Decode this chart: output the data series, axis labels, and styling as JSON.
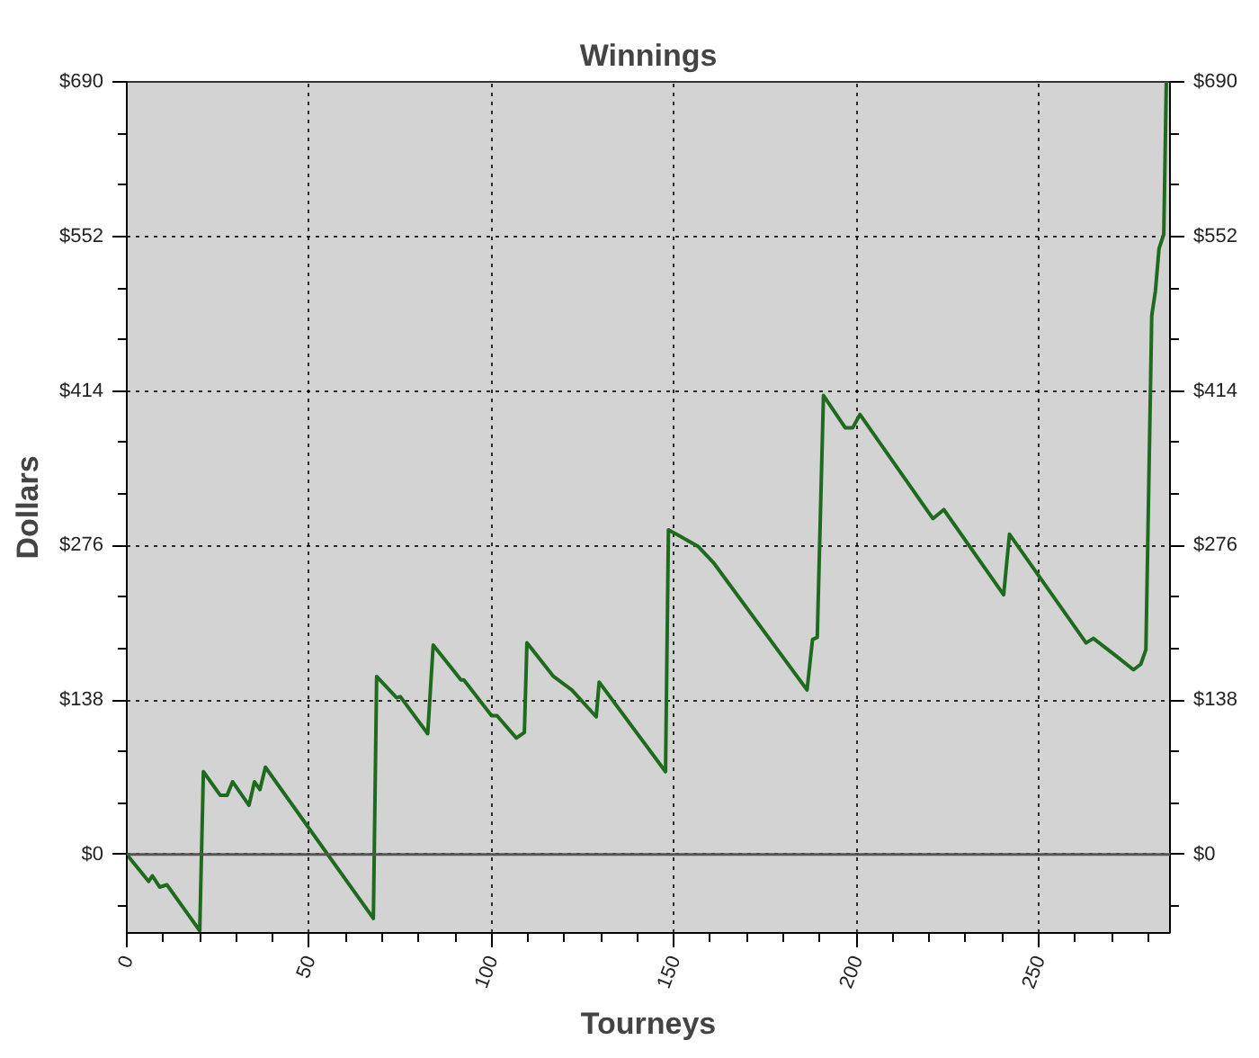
{
  "chart_data": {
    "type": "line",
    "title": "Winnings",
    "xlabel": "Tourneys",
    "ylabel": "Dollars",
    "x": [
      0,
      6,
      7,
      9,
      11,
      20,
      21,
      25.6,
      27.5,
      29,
      33.5,
      35,
      36.5,
      38,
      67.6,
      68.5,
      74,
      75,
      82.5,
      84,
      91.6,
      92.4,
      100,
      101.5,
      106.8,
      109,
      109.7,
      117,
      122,
      128.7,
      129.5,
      147.7,
      148.5,
      151.8,
      156.7,
      161,
      186.5,
      188,
      189.3,
      191,
      197,
      199,
      201,
      221,
      224,
      240.4,
      242,
      263,
      265,
      271,
      276,
      278,
      279.4,
      281,
      282,
      283,
      284.3,
      285
    ],
    "series": [
      {
        "color": "#1e6b1e",
        "values": [
          0,
          -24,
          -19,
          -29,
          -27,
          -68,
          74,
          53,
          53,
          65,
          44,
          65,
          58,
          78,
          -57,
          159,
          140,
          141,
          108,
          187,
          156,
          156,
          124,
          124,
          104,
          109,
          189,
          159,
          147,
          123,
          154,
          74,
          290,
          284,
          275,
          260,
          147,
          192,
          194,
          410,
          381,
          381,
          393,
          300,
          308,
          232,
          286,
          189,
          193,
          178,
          165,
          170,
          183,
          481,
          503,
          541,
          554,
          690
        ]
      }
    ],
    "xlim": [
      0,
      286
    ],
    "xticks": [
      0,
      50,
      100,
      150,
      200,
      250
    ],
    "ylim": [
      -70,
      690
    ],
    "yticks": [
      {
        "value": 0,
        "label": "$0"
      },
      {
        "value": 138,
        "label": "$138"
      },
      {
        "value": 276,
        "label": "$276"
      },
      {
        "value": 414,
        "label": "$414"
      },
      {
        "value": 552,
        "label": "$552"
      },
      {
        "value": 690,
        "label": "$690"
      }
    ],
    "y2lim": [
      -70,
      690
    ],
    "y2ticks": [
      {
        "value": 0,
        "label": "$0"
      },
      {
        "value": 138,
        "label": "$138"
      },
      {
        "value": 276,
        "label": "$276"
      },
      {
        "value": 414,
        "label": "$414"
      },
      {
        "value": 552,
        "label": "$552"
      },
      {
        "value": 690,
        "label": "$690"
      }
    ],
    "ref_lines": [
      {
        "axis": "y",
        "value": 0,
        "color": "#555555",
        "line_style": "solid"
      }
    ],
    "grid": true,
    "marker": "none",
    "line_style": "solid"
  }
}
